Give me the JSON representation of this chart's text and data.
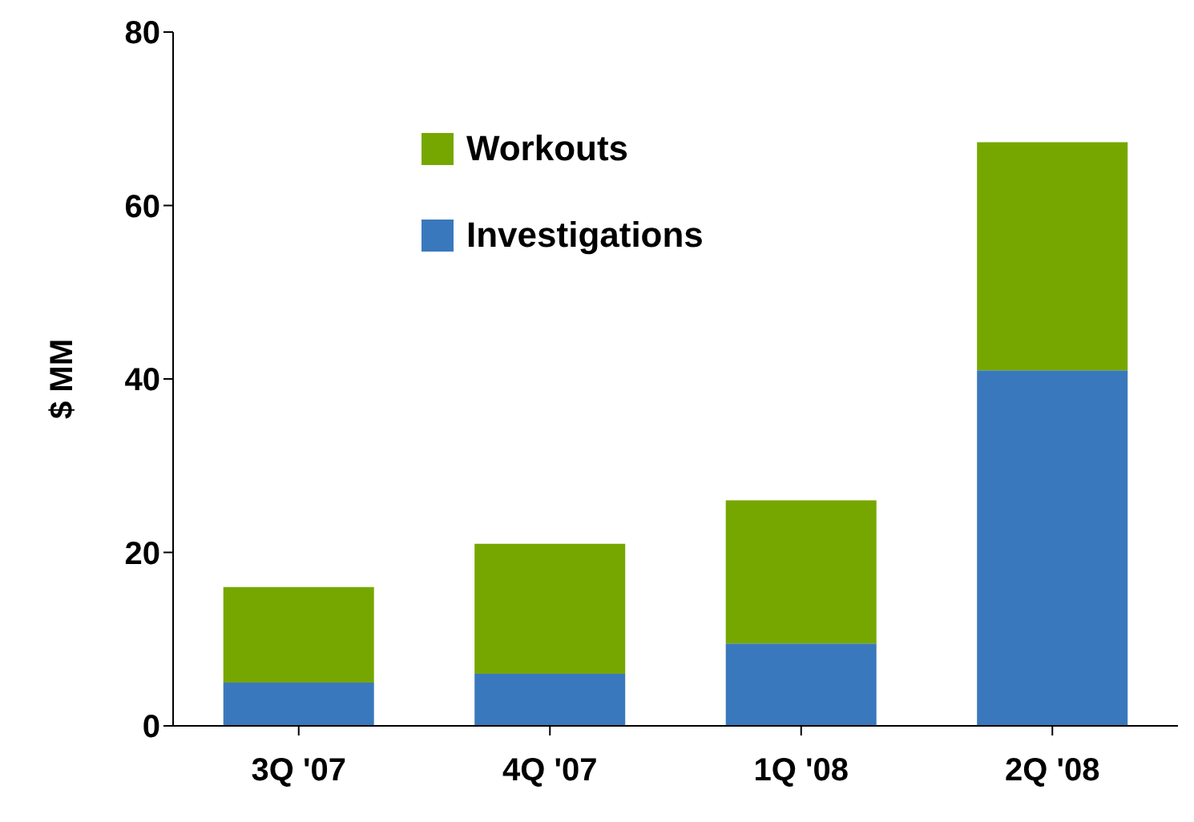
{
  "chart_data": {
    "type": "bar",
    "stacked": true,
    "ylabel": "$ MM",
    "categories": [
      "3Q '07",
      "4Q '07",
      "1Q '08",
      "2Q '08"
    ],
    "series": [
      {
        "name": "Investigations",
        "color": "#3a78bd",
        "values": [
          5,
          6,
          9.5,
          41
        ]
      },
      {
        "name": "Workouts",
        "color": "#76a700",
        "values": [
          11,
          15,
          16.5,
          26.3
        ]
      }
    ],
    "ylim": [
      0,
      80
    ],
    "yticks": [
      0,
      20,
      40,
      60,
      80
    ],
    "grid": false,
    "legend": "top left"
  }
}
